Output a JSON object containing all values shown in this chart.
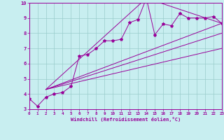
{
  "title": "",
  "xlabel": "Windchill (Refroidissement éolien,°C)",
  "ylabel": "",
  "xlim": [
    0,
    23
  ],
  "ylim": [
    3,
    10
  ],
  "xticks": [
    0,
    1,
    2,
    3,
    4,
    5,
    6,
    7,
    8,
    9,
    10,
    11,
    12,
    13,
    14,
    15,
    16,
    17,
    18,
    19,
    20,
    21,
    22,
    23
  ],
  "yticks": [
    3,
    4,
    5,
    6,
    7,
    8,
    9,
    10
  ],
  "background_color": "#c8eef0",
  "line_color": "#990099",
  "grid_color": "#99cccc",
  "series": {
    "main": {
      "x": [
        0,
        1,
        2,
        3,
        4,
        5,
        6,
        7,
        8,
        9,
        10,
        11,
        12,
        13,
        14,
        15,
        16,
        17,
        18,
        19,
        20,
        21,
        22,
        23
      ],
      "y": [
        3.7,
        3.2,
        3.8,
        4.0,
        4.1,
        4.5,
        6.5,
        6.6,
        7.0,
        7.5,
        7.5,
        7.6,
        8.7,
        8.9,
        10.3,
        7.9,
        8.6,
        8.5,
        9.3,
        9.0,
        9.0,
        9.0,
        9.1,
        8.65
      ]
    },
    "line1": {
      "x": [
        2,
        14,
        23
      ],
      "y": [
        4.3,
        10.3,
        8.65
      ]
    },
    "line2": {
      "x": [
        2,
        23
      ],
      "y": [
        4.3,
        8.65
      ]
    },
    "line3": {
      "x": [
        2,
        23
      ],
      "y": [
        4.3,
        8.0
      ]
    },
    "line4": {
      "x": [
        2,
        23
      ],
      "y": [
        4.3,
        7.0
      ]
    }
  }
}
